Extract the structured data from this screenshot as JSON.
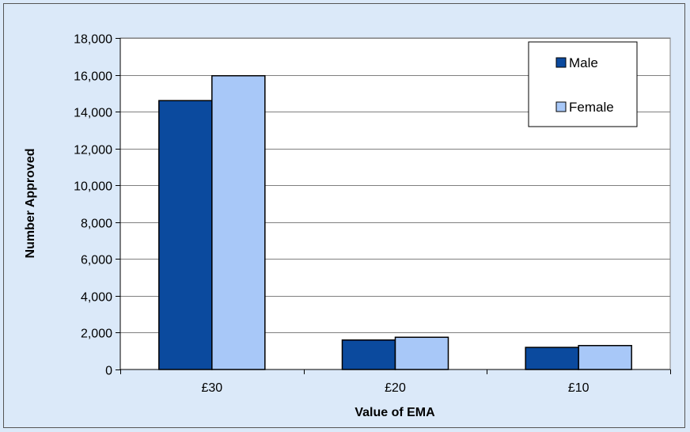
{
  "chart_data": {
    "type": "bar",
    "categories": [
      "£30",
      "£20",
      "£10"
    ],
    "series": [
      {
        "name": "Male",
        "values": [
          14600,
          1600,
          1200
        ],
        "color": "#0b4a9e"
      },
      {
        "name": "Female",
        "values": [
          15950,
          1750,
          1300
        ],
        "color": "#a8c8f8"
      }
    ],
    "xlabel": "Value of EMA",
    "ylabel": "Number Approved",
    "ylim": [
      0,
      18000
    ],
    "yticks": [
      0,
      2000,
      4000,
      6000,
      8000,
      10000,
      12000,
      14000,
      16000,
      18000
    ],
    "ytick_labels": [
      "0",
      "2,000",
      "4,000",
      "6,000",
      "8,000",
      "10,000",
      "12,000",
      "14,000",
      "16,000",
      "18,000"
    ],
    "grid": true,
    "legend_position": "top-right",
    "plot_background": "#ffffff",
    "page_background": "#dbe9f9"
  }
}
